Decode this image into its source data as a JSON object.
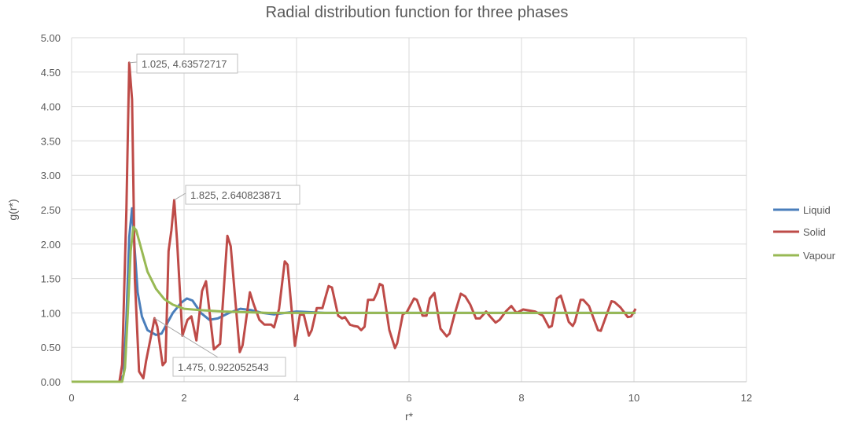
{
  "chart_data": {
    "type": "line",
    "title": "Radial distribution function for three phases",
    "xlabel": "r*",
    "ylabel": "g(r*)",
    "xlim": [
      0,
      12
    ],
    "ylim": [
      0,
      5
    ],
    "xticks": [
      "0",
      "2",
      "4",
      "6",
      "8",
      "10",
      "12"
    ],
    "yticks": [
      "0.00",
      "0.50",
      "1.00",
      "1.50",
      "2.00",
      "2.50",
      "3.00",
      "3.50",
      "4.00",
      "4.50",
      "5.00"
    ],
    "grid": true,
    "legend_position": "right",
    "series": [
      {
        "name": "Liquid",
        "color": "#4a7ebb",
        "points": [
          [
            0,
            0
          ],
          [
            0.85,
            0
          ],
          [
            0.925,
            0.1
          ],
          [
            0.975,
            0.9
          ],
          [
            1.025,
            2.1
          ],
          [
            1.075,
            2.52
          ],
          [
            1.125,
            1.9
          ],
          [
            1.175,
            1.3
          ],
          [
            1.25,
            0.95
          ],
          [
            1.35,
            0.75
          ],
          [
            1.5,
            0.68
          ],
          [
            1.6,
            0.7
          ],
          [
            1.7,
            0.85
          ],
          [
            1.8,
            1.0
          ],
          [
            1.95,
            1.15
          ],
          [
            2.05,
            1.21
          ],
          [
            2.15,
            1.18
          ],
          [
            2.3,
            1.0
          ],
          [
            2.45,
            0.9
          ],
          [
            2.6,
            0.92
          ],
          [
            2.8,
            1.0
          ],
          [
            3.0,
            1.06
          ],
          [
            3.2,
            1.04
          ],
          [
            3.4,
            1.0
          ],
          [
            3.6,
            0.98
          ],
          [
            3.8,
            1.0
          ],
          [
            4.0,
            1.02
          ],
          [
            4.5,
            1.0
          ],
          [
            10.025,
            1.0
          ]
        ]
      },
      {
        "name": "Solid",
        "color": "#be4b48",
        "points": [
          [
            0,
            0
          ],
          [
            0.85,
            0
          ],
          [
            0.9,
            0.25
          ],
          [
            0.975,
            2.5
          ],
          [
            1.025,
            4.63572717
          ],
          [
            1.075,
            4.1
          ],
          [
            1.125,
            1.5
          ],
          [
            1.2,
            0.15
          ],
          [
            1.275,
            0.05
          ],
          [
            1.325,
            0.3
          ],
          [
            1.475,
            0.922052543
          ],
          [
            1.525,
            0.8
          ],
          [
            1.62,
            0.24
          ],
          [
            1.67,
            0.29
          ],
          [
            1.725,
            1.9
          ],
          [
            1.775,
            2.2
          ],
          [
            1.825,
            2.640823871
          ],
          [
            1.875,
            2.05
          ],
          [
            1.97,
            0.67
          ],
          [
            2.06,
            0.9
          ],
          [
            2.13,
            0.95
          ],
          [
            2.22,
            0.6
          ],
          [
            2.32,
            1.32
          ],
          [
            2.39,
            1.46
          ],
          [
            2.53,
            0.47
          ],
          [
            2.64,
            0.55
          ],
          [
            2.77,
            2.12
          ],
          [
            2.83,
            1.97
          ],
          [
            2.99,
            0.43
          ],
          [
            3.04,
            0.53
          ],
          [
            3.17,
            1.3
          ],
          [
            3.24,
            1.12
          ],
          [
            3.34,
            0.9
          ],
          [
            3.43,
            0.83
          ],
          [
            3.55,
            0.83
          ],
          [
            3.6,
            0.79
          ],
          [
            3.69,
            1.06
          ],
          [
            3.79,
            1.75
          ],
          [
            3.84,
            1.7
          ],
          [
            3.97,
            0.52
          ],
          [
            4.06,
            0.98
          ],
          [
            4.13,
            0.97
          ],
          [
            4.22,
            0.67
          ],
          [
            4.27,
            0.75
          ],
          [
            4.36,
            1.07
          ],
          [
            4.46,
            1.07
          ],
          [
            4.57,
            1.39
          ],
          [
            4.63,
            1.37
          ],
          [
            4.74,
            0.96
          ],
          [
            4.81,
            0.92
          ],
          [
            4.86,
            0.94
          ],
          [
            4.95,
            0.83
          ],
          [
            5.02,
            0.81
          ],
          [
            5.09,
            0.8
          ],
          [
            5.15,
            0.75
          ],
          [
            5.21,
            0.8
          ],
          [
            5.27,
            1.19
          ],
          [
            5.37,
            1.19
          ],
          [
            5.43,
            1.29
          ],
          [
            5.48,
            1.42
          ],
          [
            5.53,
            1.4
          ],
          [
            5.65,
            0.75
          ],
          [
            5.75,
            0.49
          ],
          [
            5.79,
            0.56
          ],
          [
            5.89,
            0.98
          ],
          [
            5.96,
            1.01
          ],
          [
            6.09,
            1.21
          ],
          [
            6.14,
            1.19
          ],
          [
            6.24,
            0.96
          ],
          [
            6.31,
            0.96
          ],
          [
            6.37,
            1.21
          ],
          [
            6.45,
            1.29
          ],
          [
            6.56,
            0.77
          ],
          [
            6.67,
            0.66
          ],
          [
            6.72,
            0.7
          ],
          [
            6.81,
            0.98
          ],
          [
            6.92,
            1.28
          ],
          [
            7.0,
            1.24
          ],
          [
            7.09,
            1.12
          ],
          [
            7.19,
            0.92
          ],
          [
            7.26,
            0.92
          ],
          [
            7.37,
            1.02
          ],
          [
            7.44,
            0.95
          ],
          [
            7.54,
            0.86
          ],
          [
            7.61,
            0.9
          ],
          [
            7.72,
            1.02
          ],
          [
            7.82,
            1.1
          ],
          [
            7.91,
            1.0
          ],
          [
            8.03,
            1.05
          ],
          [
            8.1,
            1.04
          ],
          [
            8.24,
            1.02
          ],
          [
            8.38,
            0.96
          ],
          [
            8.49,
            0.79
          ],
          [
            8.54,
            0.81
          ],
          [
            8.63,
            1.21
          ],
          [
            8.7,
            1.25
          ],
          [
            8.84,
            0.87
          ],
          [
            8.91,
            0.81
          ],
          [
            8.95,
            0.87
          ],
          [
            9.05,
            1.19
          ],
          [
            9.1,
            1.19
          ],
          [
            9.2,
            1.1
          ],
          [
            9.36,
            0.75
          ],
          [
            9.41,
            0.74
          ],
          [
            9.6,
            1.17
          ],
          [
            9.65,
            1.16
          ],
          [
            9.76,
            1.08
          ],
          [
            9.89,
            0.94
          ],
          [
            9.95,
            0.95
          ],
          [
            10.03,
            1.06
          ]
        ]
      },
      {
        "name": "Vapour",
        "color": "#98b954",
        "points": [
          [
            0,
            0
          ],
          [
            0.9,
            0
          ],
          [
            0.95,
            0.2
          ],
          [
            1.0,
            1.0
          ],
          [
            1.05,
            1.9
          ],
          [
            1.1,
            2.25
          ],
          [
            1.15,
            2.2
          ],
          [
            1.25,
            1.9
          ],
          [
            1.35,
            1.6
          ],
          [
            1.5,
            1.35
          ],
          [
            1.65,
            1.2
          ],
          [
            1.8,
            1.12
          ],
          [
            2.0,
            1.06
          ],
          [
            2.3,
            1.04
          ],
          [
            2.7,
            1.02
          ],
          [
            3.5,
            1.0
          ],
          [
            10.025,
            1.0
          ]
        ]
      }
    ],
    "annotations": [
      {
        "series": "Solid",
        "x": 1.025,
        "y": 4.63572717,
        "label": "1.025, 4.63572717"
      },
      {
        "series": "Solid",
        "x": 1.825,
        "y": 2.640823871,
        "label": "1.825, 2.640823871"
      },
      {
        "series": "Solid",
        "x": 1.475,
        "y": 0.922052543,
        "label": "1.475, 0.922052543"
      }
    ]
  }
}
